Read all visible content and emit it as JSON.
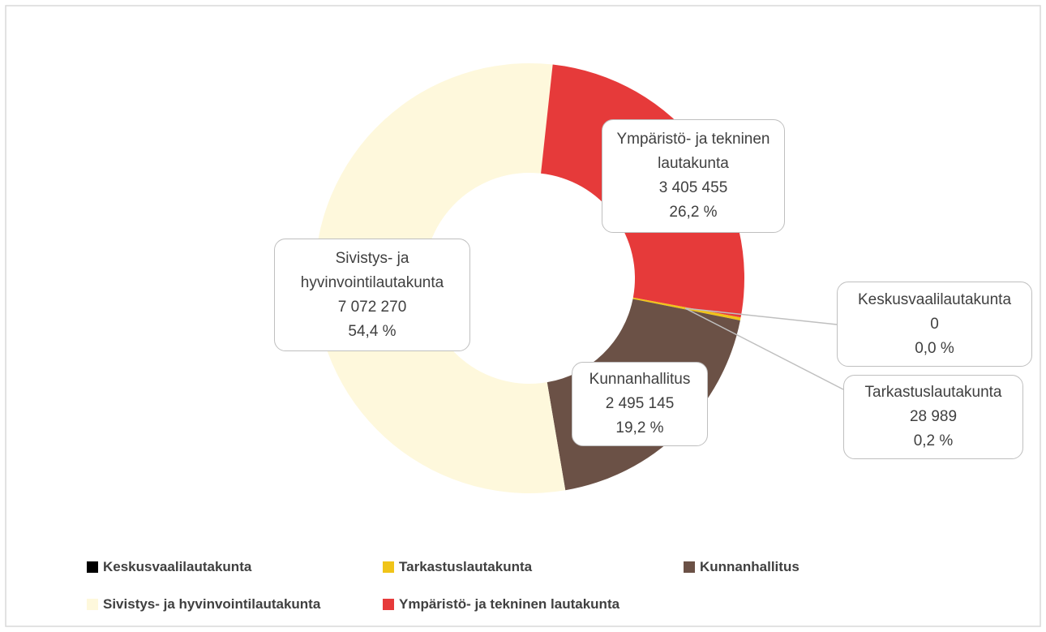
{
  "chart_data": {
    "type": "donut",
    "categories": [
      "Keskusvaalilautakunta",
      "Tarkastuslautakunta",
      "Kunnanhallitus",
      "Sivistys- ja hyvinvointilautakunta",
      "Ympäristö- ja tekninen lautakunta"
    ],
    "values": [
      0,
      28989,
      2495145,
      7072270,
      3405455
    ],
    "value_labels": [
      "0",
      "28 989",
      "2 495 145",
      "7 072 270",
      "3 405 455"
    ],
    "percentages": [
      0.0,
      0.2,
      19.2,
      54.4,
      26.2
    ],
    "percentage_labels": [
      "0,0 %",
      "0,2 %",
      "19,2 %",
      "54,4 %",
      "26,2 %"
    ],
    "colors": [
      "#000000",
      "#f0c419",
      "#6b5146",
      "#fef8dc",
      "#e63a3a"
    ],
    "legend": "bottom"
  }
}
